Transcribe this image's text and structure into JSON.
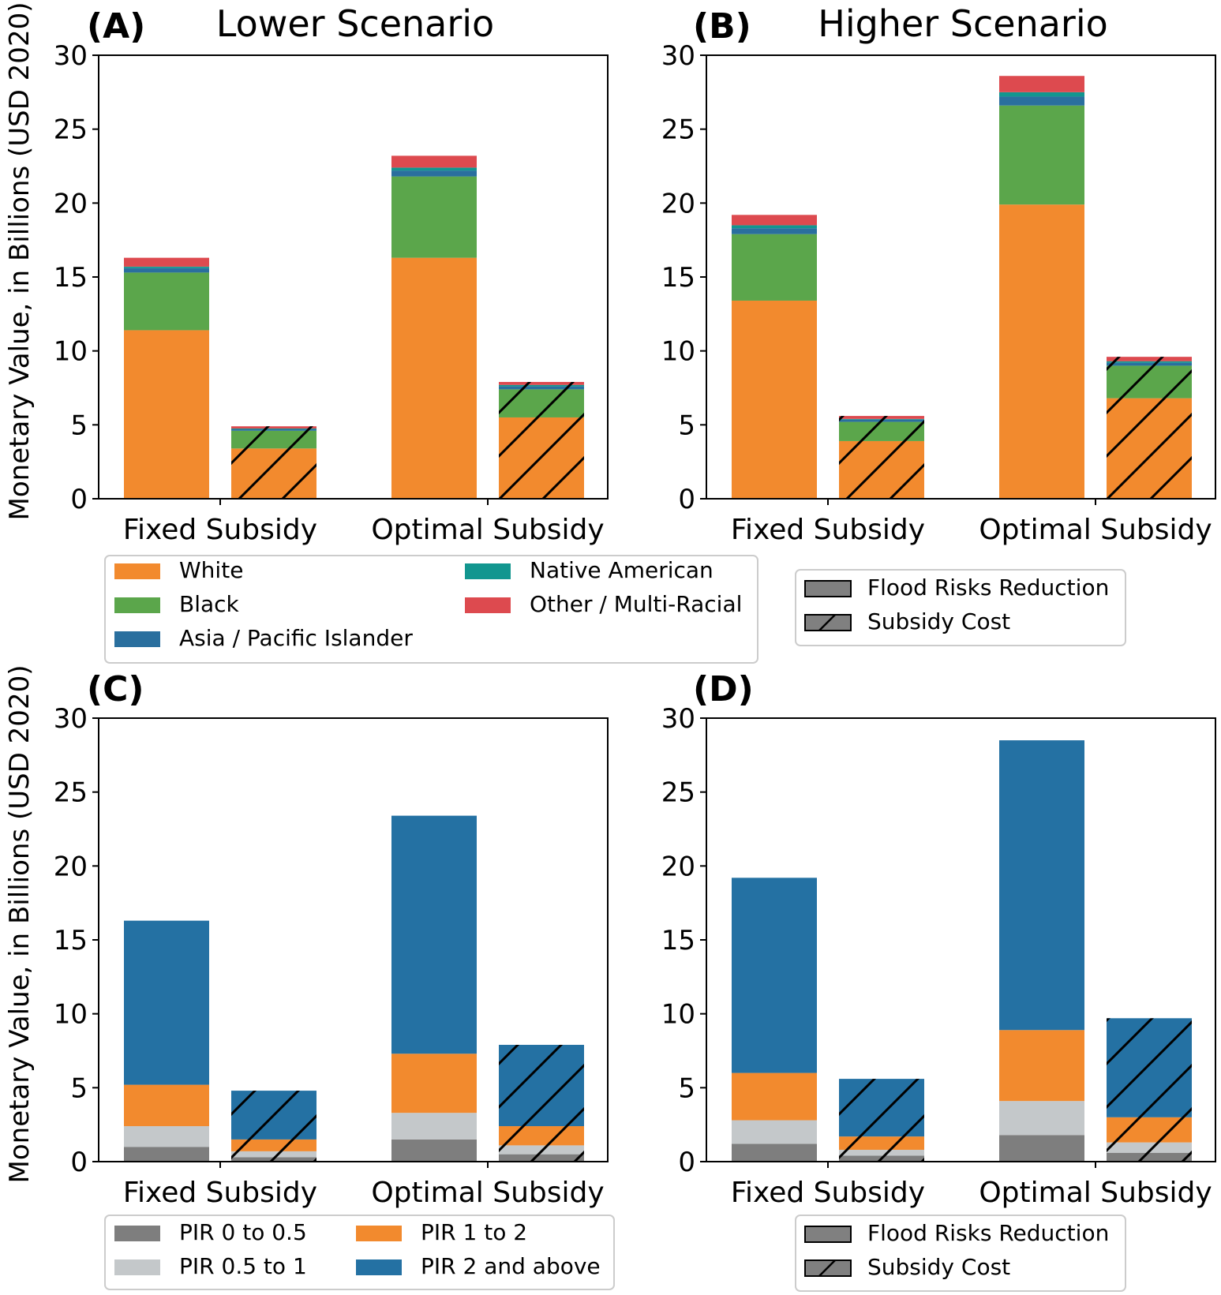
{
  "figure": {
    "ylabel": "Monetary Value, in Billions (USD 2020)",
    "categories": [
      "Fixed Subsidy",
      "Optimal Subsidy"
    ],
    "yticks": [
      "0",
      "5",
      "10",
      "15",
      "20",
      "25",
      "30"
    ]
  },
  "colors": {
    "white": "#F28A2E",
    "black": "#5BA64B",
    "asia_pacific": "#2A6F9E",
    "native_american": "#12968F",
    "other_multiracial": "#DD4A4F",
    "pir_0_05": "#7E7E7E",
    "pir_05_1": "#C4C8CA",
    "pir_1_2": "#F28A2E",
    "pir_2_above": "#2471A3",
    "legend_patch": "#808080"
  },
  "legend_race": {
    "items": [
      "White",
      "Black",
      "Asia / Pacific Islander",
      "Native American",
      "Other / Multi-Racial"
    ]
  },
  "legend_type": {
    "items": [
      "Flood Risks Reduction",
      "Subsidy Cost"
    ]
  },
  "legend_pir": {
    "items": [
      "PIR 0 to 0.5",
      "PIR 0.5 to 1",
      "PIR 1 to 2",
      "PIR 2 and above"
    ]
  },
  "chart_data": [
    {
      "panel": "(A)",
      "title": "Lower Scenario",
      "type": "stacked-bar",
      "ylim": [
        0,
        30
      ],
      "ylabel": "Monetary Value, in Billions (USD 2020)",
      "categories": [
        "Fixed Subsidy",
        "Optimal Subsidy"
      ],
      "bars": [
        {
          "category": "Fixed Subsidy",
          "kind": "Flood Risks Reduction",
          "values": [
            11.4,
            3.9,
            0.3,
            0.1,
            0.6
          ]
        },
        {
          "category": "Fixed Subsidy",
          "kind": "Subsidy Cost",
          "values": [
            3.4,
            1.2,
            0.1,
            0.05,
            0.15
          ]
        },
        {
          "category": "Optimal Subsidy",
          "kind": "Flood Risks Reduction",
          "values": [
            16.3,
            5.5,
            0.4,
            0.2,
            0.8
          ]
        },
        {
          "category": "Optimal Subsidy",
          "kind": "Subsidy Cost",
          "values": [
            5.5,
            1.9,
            0.2,
            0.1,
            0.2
          ]
        }
      ],
      "series": [
        "White",
        "Black",
        "Asia / Pacific Islander",
        "Native American",
        "Other / Multi-Racial"
      ]
    },
    {
      "panel": "(B)",
      "title": "Higher Scenario",
      "type": "stacked-bar",
      "ylim": [
        0,
        30
      ],
      "categories": [
        "Fixed Subsidy",
        "Optimal Subsidy"
      ],
      "bars": [
        {
          "category": "Fixed Subsidy",
          "kind": "Flood Risks Reduction",
          "values": [
            13.4,
            4.5,
            0.4,
            0.2,
            0.7
          ]
        },
        {
          "category": "Fixed Subsidy",
          "kind": "Subsidy Cost",
          "values": [
            3.9,
            1.3,
            0.15,
            0.05,
            0.2
          ]
        },
        {
          "category": "Optimal Subsidy",
          "kind": "Flood Risks Reduction",
          "values": [
            19.9,
            6.7,
            0.6,
            0.3,
            1.1
          ]
        },
        {
          "category": "Optimal Subsidy",
          "kind": "Subsidy Cost",
          "values": [
            6.8,
            2.2,
            0.2,
            0.1,
            0.3
          ]
        }
      ],
      "series": [
        "White",
        "Black",
        "Asia / Pacific Islander",
        "Native American",
        "Other / Multi-Racial"
      ]
    },
    {
      "panel": "(C)",
      "title": "",
      "type": "stacked-bar",
      "ylim": [
        0,
        30
      ],
      "ylabel": "Monetary Value, in Billions (USD 2020)",
      "categories": [
        "Fixed Subsidy",
        "Optimal Subsidy"
      ],
      "bars": [
        {
          "category": "Fixed Subsidy",
          "kind": "Flood Risks Reduction",
          "values": [
            1.0,
            1.4,
            2.8,
            11.1
          ]
        },
        {
          "category": "Fixed Subsidy",
          "kind": "Subsidy Cost",
          "values": [
            0.3,
            0.4,
            0.8,
            3.3
          ]
        },
        {
          "category": "Optimal Subsidy",
          "kind": "Flood Risks Reduction",
          "values": [
            1.5,
            1.8,
            4.0,
            16.1
          ]
        },
        {
          "category": "Optimal Subsidy",
          "kind": "Subsidy Cost",
          "values": [
            0.5,
            0.6,
            1.3,
            5.5
          ]
        }
      ],
      "series": [
        "PIR 0 to 0.5",
        "PIR 0.5 to 1",
        "PIR 1 to 2",
        "PIR 2 and above"
      ]
    },
    {
      "panel": "(D)",
      "title": "",
      "type": "stacked-bar",
      "ylim": [
        0,
        30
      ],
      "categories": [
        "Fixed Subsidy",
        "Optimal Subsidy"
      ],
      "bars": [
        {
          "category": "Fixed Subsidy",
          "kind": "Flood Risks Reduction",
          "values": [
            1.2,
            1.6,
            3.2,
            13.2
          ]
        },
        {
          "category": "Fixed Subsidy",
          "kind": "Subsidy Cost",
          "values": [
            0.4,
            0.4,
            0.9,
            3.9
          ]
        },
        {
          "category": "Optimal Subsidy",
          "kind": "Flood Risks Reduction",
          "values": [
            1.8,
            2.3,
            4.8,
            19.6
          ]
        },
        {
          "category": "Optimal Subsidy",
          "kind": "Subsidy Cost",
          "values": [
            0.6,
            0.7,
            1.7,
            6.7
          ]
        }
      ],
      "series": [
        "PIR 0 to 0.5",
        "PIR 0.5 to 1",
        "PIR 1 to 2",
        "PIR 2 and above"
      ]
    }
  ]
}
